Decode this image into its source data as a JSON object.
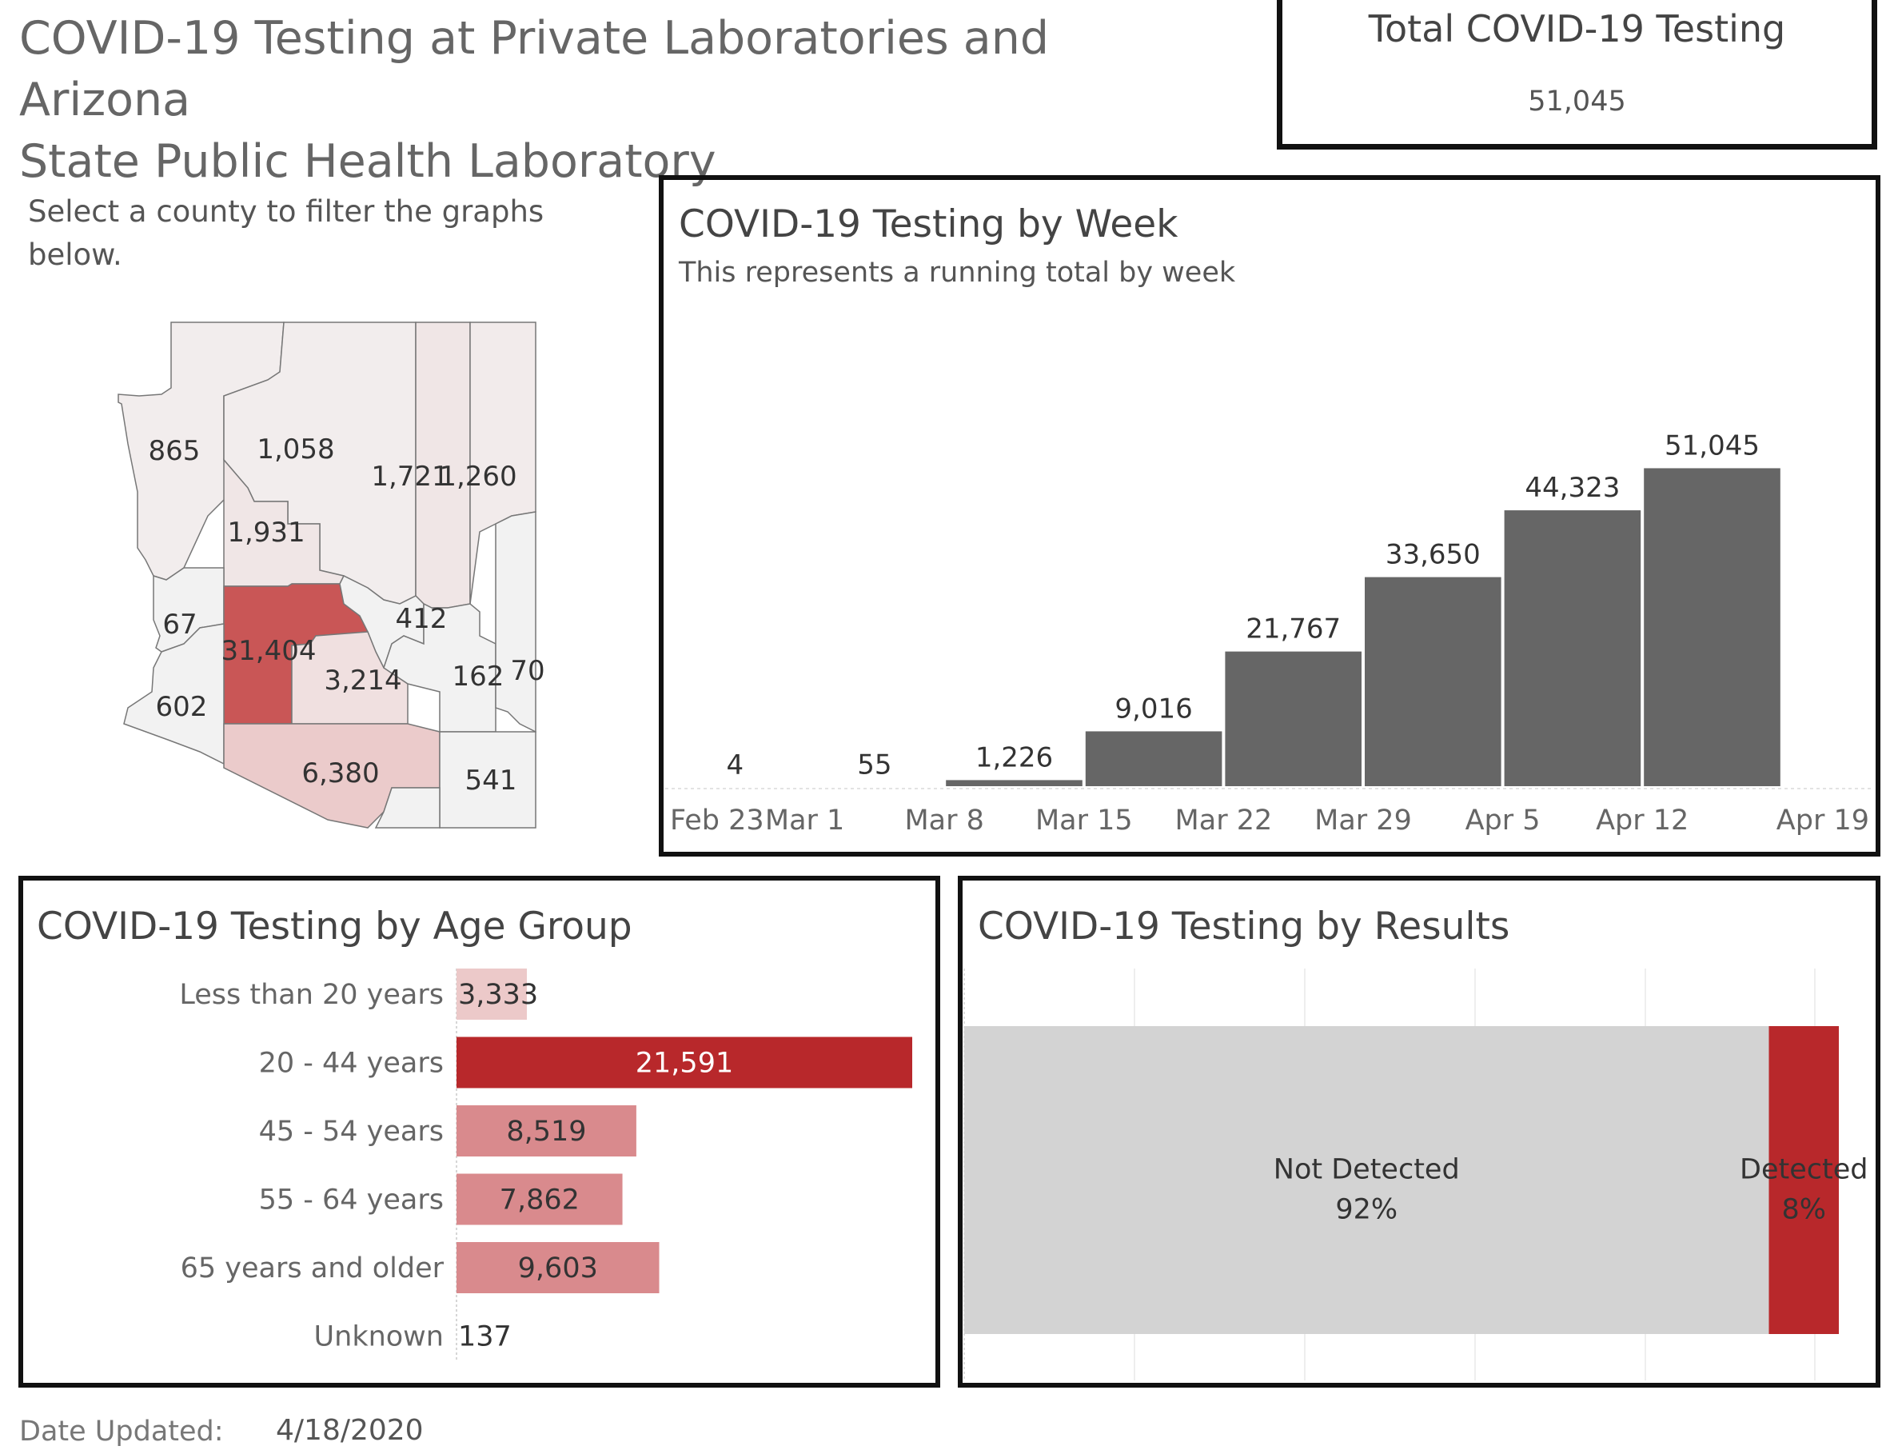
{
  "header": {
    "title_line1": "COVID-19 Testing at Private Laboratories and Arizona",
    "title_line2": "State Public Health Laboratory"
  },
  "total": {
    "title": "Total COVID-19 Testing",
    "value": "51,045"
  },
  "map": {
    "hint": "Select a county to filter the graphs below.",
    "counties": [
      {
        "id": "mohave",
        "label": "865",
        "value": 865
      },
      {
        "id": "coconino",
        "label": "1,058",
        "value": 1058
      },
      {
        "id": "navajo",
        "label": "1,721",
        "value": 1721
      },
      {
        "id": "apache",
        "label": "1,260",
        "value": 1260
      },
      {
        "id": "yavapai",
        "label": "1,931",
        "value": 1931
      },
      {
        "id": "la-paz",
        "label": "67",
        "value": 67
      },
      {
        "id": "maricopa",
        "label": "31,404",
        "value": 31404
      },
      {
        "id": "gila",
        "label": "412",
        "value": 412
      },
      {
        "id": "yuma",
        "label": "602",
        "value": 602
      },
      {
        "id": "pinal",
        "label": "3,214",
        "value": 3214
      },
      {
        "id": "graham",
        "label": "162",
        "value": 162
      },
      {
        "id": "greenlee",
        "label": "70",
        "value": 70
      },
      {
        "id": "pima",
        "label": "6,380",
        "value": 6380
      },
      {
        "id": "cochise",
        "label": "541",
        "value": 541
      },
      {
        "id": "santa-cruz",
        "label": "",
        "value": null
      }
    ]
  },
  "week": {
    "title": "COVID-19 Testing by Week",
    "subtitle": "This represents a running total by week"
  },
  "age": {
    "title": "COVID-19 Testing by Age Group"
  },
  "results": {
    "title": "COVID-19 Testing by Results"
  },
  "footer": {
    "date_label": "Date Updated:",
    "date_value": "4/18/2020"
  },
  "colors": {
    "week_bar": "#666666",
    "age_max": "#b8282b",
    "age_mid": "#d98a8d",
    "age_low": "#ecc9c9",
    "detected": "#b8282b",
    "not_detected": "#d3d3d3",
    "maricopa": "#c95656"
  },
  "chart_data": [
    {
      "type": "bar",
      "title": "COVID-19 Testing by Week",
      "subtitle": "This represents a running total by week",
      "categories": [
        "Feb 23",
        "Mar 1",
        "Mar 8",
        "Mar 15",
        "Mar 22",
        "Mar 29",
        "Apr 5",
        "Apr 12"
      ],
      "values": [
        4,
        55,
        1226,
        9016,
        21767,
        33650,
        44323,
        51045
      ],
      "labels": [
        "4",
        "55",
        "1,226",
        "9,016",
        "21,767",
        "33,650",
        "44,323",
        "51,045"
      ],
      "x_ticks": [
        "Feb 23",
        "Mar 1",
        "Mar 8",
        "Mar 15",
        "Mar 22",
        "Mar 29",
        "Apr 5",
        "Apr 12",
        "Apr 19"
      ],
      "ylim": [
        0,
        58000
      ]
    },
    {
      "type": "bar",
      "orientation": "horizontal",
      "title": "COVID-19 Testing by Age Group",
      "categories": [
        "Less than 20 years",
        "20 - 44 years",
        "45 - 54 years",
        "55 - 64 years",
        "65 years and older",
        "Unknown"
      ],
      "values": [
        3333,
        21591,
        8519,
        7862,
        9603,
        137
      ],
      "labels": [
        "3,333",
        "21,591",
        "8,519",
        "7,862",
        "9,603",
        "137"
      ],
      "xlim": [
        0,
        21591
      ]
    },
    {
      "type": "bar",
      "orientation": "horizontal",
      "stacked": true,
      "title": "COVID-19 Testing by Results",
      "categories": [
        "Not Detected",
        "Detected"
      ],
      "values": [
        92,
        8
      ],
      "labels": [
        "92%",
        "8%"
      ],
      "xlim": [
        0,
        100
      ]
    }
  ]
}
